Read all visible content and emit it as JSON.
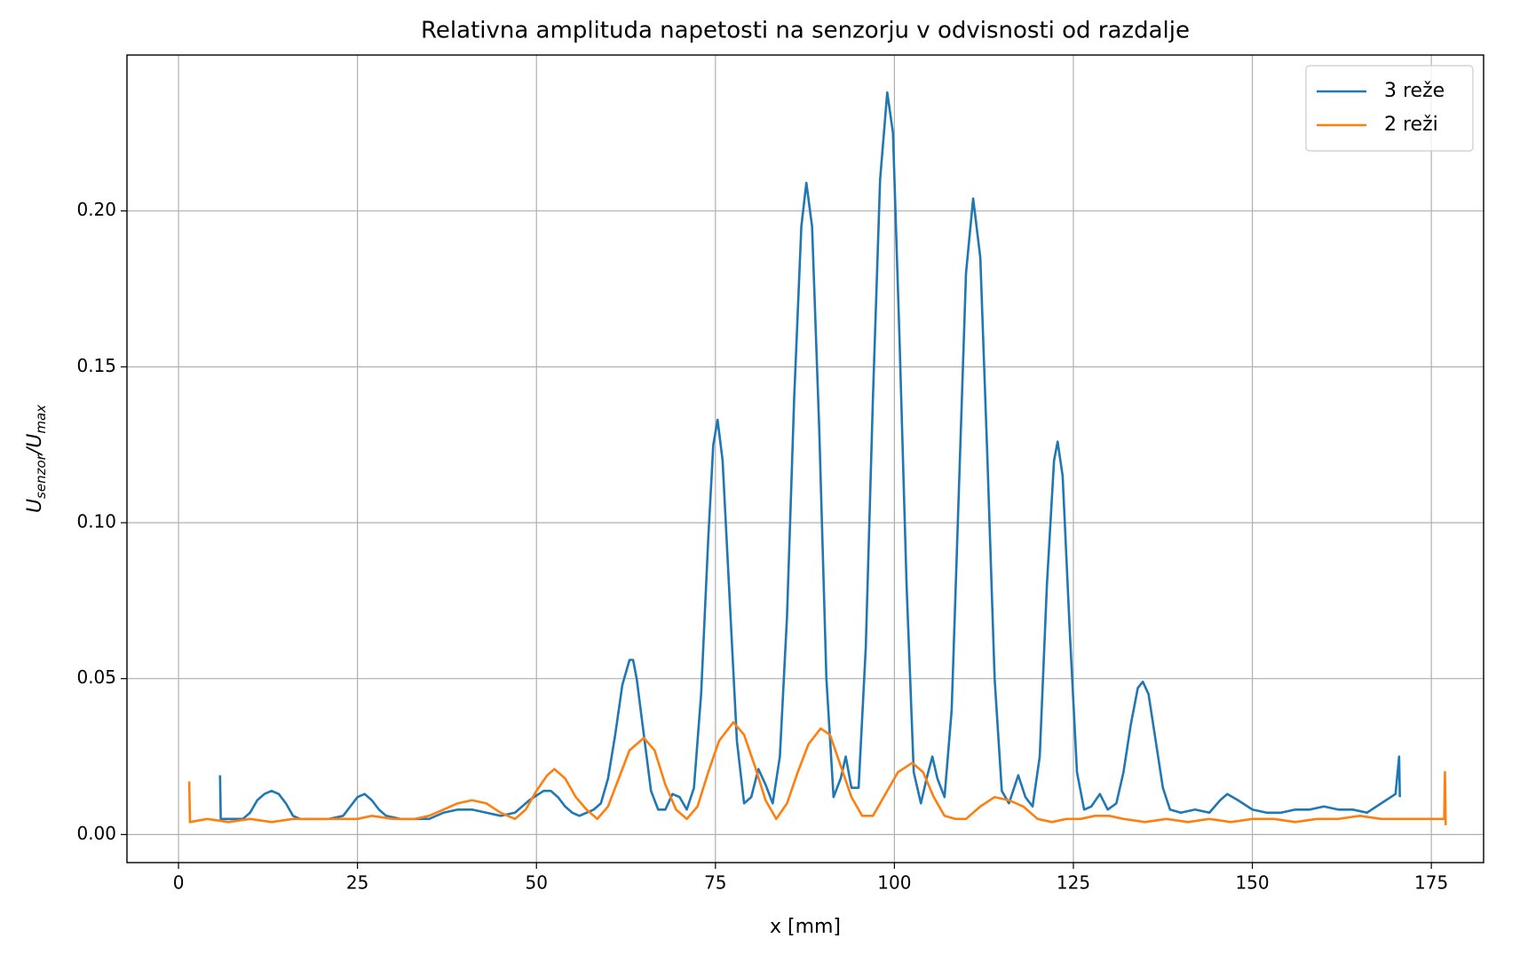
{
  "chart_data": {
    "type": "line",
    "title": "Relativna amplituda napetosti na senzorju v odvisnosti od razdalje",
    "xlabel": "x [mm]",
    "ylabel": [
      "U",
      "senzor",
      "/U",
      "max"
    ],
    "xlim": [
      -7.2,
      182.3
    ],
    "ylim": [
      -0.009,
      0.25
    ],
    "xticks": [
      0,
      25,
      50,
      75,
      100,
      125,
      150,
      175
    ],
    "yticks": [
      {
        "value": 0,
        "label": "0.00"
      },
      {
        "value": 0.05,
        "label": "0.05"
      },
      {
        "value": 0.1,
        "label": "0.10"
      },
      {
        "value": 0.15,
        "label": "0.15"
      },
      {
        "value": 0.2,
        "label": "0.20"
      }
    ],
    "grid": true,
    "legend": "upper right",
    "series": [
      {
        "name": "3 reže",
        "color": "#1f77b4",
        "x": [
          5.8,
          5.9,
          7,
          8,
          9,
          10,
          11,
          12,
          13,
          14,
          15,
          16,
          17,
          19,
          21,
          23,
          24,
          25,
          26,
          27,
          28,
          29,
          31,
          33,
          35,
          37,
          39,
          41,
          43,
          45,
          47,
          49,
          51,
          52,
          53,
          54,
          55,
          56,
          57,
          58,
          59,
          60,
          61,
          62,
          63,
          63.5,
          64,
          65,
          66,
          67,
          68,
          69,
          70,
          71,
          72,
          73,
          74,
          74.7,
          75.3,
          76,
          77,
          78,
          79,
          80,
          81,
          82,
          83,
          84,
          85,
          86,
          87,
          87.7,
          88.5,
          89.5,
          90.5,
          91.5,
          92.5,
          93.2,
          94,
          95,
          96,
          97,
          98,
          99,
          99.8,
          100.7,
          101.7,
          102.7,
          103.7,
          104.5,
          105.3,
          106,
          107,
          108,
          109,
          110,
          111,
          112,
          113,
          114,
          115,
          116,
          117.3,
          118.3,
          119.3,
          120.3,
          121.3,
          122.3,
          122.8,
          123.5,
          124.5,
          125.5,
          126.5,
          127.5,
          128.7,
          129.8,
          131,
          132,
          133,
          134,
          134.7,
          135.5,
          136.5,
          137.5,
          138.5,
          140,
          142,
          144,
          145.5,
          146.5,
          148,
          150,
          152,
          154,
          156,
          158,
          160,
          162,
          164,
          166,
          168,
          170,
          170.5,
          170.6
        ],
        "values": [
          0.019,
          0.005,
          0.005,
          0.005,
          0.005,
          0.007,
          0.011,
          0.013,
          0.014,
          0.013,
          0.01,
          0.006,
          0.005,
          0.005,
          0.005,
          0.006,
          0.009,
          0.012,
          0.013,
          0.011,
          0.008,
          0.006,
          0.005,
          0.005,
          0.005,
          0.007,
          0.008,
          0.008,
          0.007,
          0.006,
          0.007,
          0.011,
          0.014,
          0.014,
          0.012,
          0.009,
          0.007,
          0.006,
          0.007,
          0.008,
          0.01,
          0.018,
          0.032,
          0.048,
          0.056,
          0.056,
          0.05,
          0.032,
          0.014,
          0.008,
          0.008,
          0.013,
          0.012,
          0.008,
          0.015,
          0.045,
          0.095,
          0.125,
          0.133,
          0.12,
          0.075,
          0.03,
          0.01,
          0.012,
          0.021,
          0.016,
          0.01,
          0.025,
          0.07,
          0.14,
          0.195,
          0.209,
          0.195,
          0.13,
          0.05,
          0.012,
          0.018,
          0.025,
          0.015,
          0.015,
          0.06,
          0.14,
          0.21,
          0.238,
          0.225,
          0.16,
          0.08,
          0.02,
          0.01,
          0.018,
          0.025,
          0.018,
          0.012,
          0.04,
          0.11,
          0.18,
          0.204,
          0.185,
          0.12,
          0.05,
          0.014,
          0.01,
          0.019,
          0.012,
          0.009,
          0.025,
          0.08,
          0.12,
          0.126,
          0.115,
          0.065,
          0.02,
          0.008,
          0.009,
          0.013,
          0.008,
          0.01,
          0.02,
          0.035,
          0.047,
          0.049,
          0.045,
          0.03,
          0.015,
          0.008,
          0.007,
          0.008,
          0.007,
          0.011,
          0.013,
          0.011,
          0.008,
          0.007,
          0.007,
          0.008,
          0.008,
          0.009,
          0.008,
          0.008,
          0.007,
          0.01,
          0.013,
          0.025,
          0.012
        ]
      },
      {
        "name": "2 reži",
        "color": "#ff7f0e",
        "x": [
          1.5,
          1.6,
          4,
          7,
          10,
          13,
          16,
          19,
          22,
          25,
          27,
          30,
          33,
          35,
          37,
          39,
          41,
          43,
          45,
          47,
          48.5,
          50,
          51.5,
          52.5,
          54,
          55.5,
          57,
          58.5,
          60,
          61.5,
          63,
          65,
          66.5,
          68,
          69.5,
          71,
          72.5,
          74,
          75.5,
          77.5,
          79,
          80.5,
          82,
          83.5,
          85,
          86.5,
          88,
          89.7,
          91,
          92.5,
          94,
          95.5,
          97,
          98.5,
          100.5,
          102.5,
          104,
          105.5,
          107,
          108.5,
          110,
          112,
          114,
          116,
          118,
          120,
          122,
          124,
          126,
          128,
          130,
          132,
          135,
          138,
          141,
          144,
          147,
          150,
          153,
          156,
          159,
          162,
          165,
          168,
          171,
          174,
          176.8,
          176.9,
          177
        ],
        "values": [
          0.017,
          0.004,
          0.005,
          0.004,
          0.005,
          0.004,
          0.005,
          0.005,
          0.005,
          0.005,
          0.006,
          0.005,
          0.005,
          0.006,
          0.008,
          0.01,
          0.011,
          0.01,
          0.007,
          0.005,
          0.008,
          0.014,
          0.019,
          0.021,
          0.018,
          0.012,
          0.008,
          0.005,
          0.009,
          0.018,
          0.027,
          0.031,
          0.027,
          0.016,
          0.008,
          0.005,
          0.009,
          0.02,
          0.03,
          0.036,
          0.032,
          0.022,
          0.011,
          0.005,
          0.01,
          0.02,
          0.029,
          0.034,
          0.032,
          0.022,
          0.012,
          0.006,
          0.006,
          0.012,
          0.02,
          0.023,
          0.02,
          0.012,
          0.006,
          0.005,
          0.005,
          0.009,
          0.012,
          0.011,
          0.009,
          0.005,
          0.004,
          0.005,
          0.005,
          0.006,
          0.006,
          0.005,
          0.004,
          0.005,
          0.004,
          0.005,
          0.004,
          0.005,
          0.005,
          0.004,
          0.005,
          0.005,
          0.006,
          0.005,
          0.005,
          0.005,
          0.005,
          0.02,
          0.003
        ]
      }
    ]
  }
}
